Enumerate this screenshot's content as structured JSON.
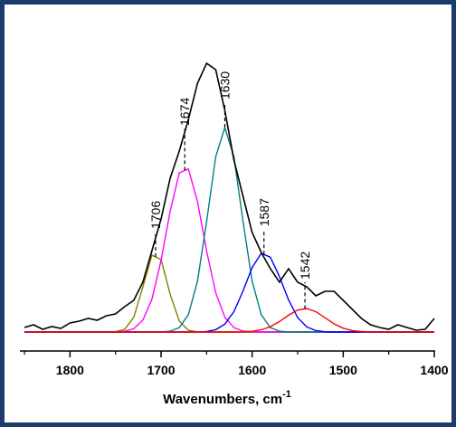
{
  "chart_data": {
    "type": "line",
    "x": [
      1850,
      1840,
      1830,
      1820,
      1810,
      1800,
      1790,
      1780,
      1770,
      1760,
      1750,
      1740,
      1730,
      1720,
      1710,
      1700,
      1690,
      1680,
      1670,
      1660,
      1650,
      1640,
      1630,
      1620,
      1610,
      1600,
      1590,
      1580,
      1570,
      1560,
      1550,
      1540,
      1530,
      1520,
      1510,
      1500,
      1490,
      1480,
      1470,
      1460,
      1450,
      1440,
      1430,
      1420,
      1410,
      1400
    ],
    "series": [
      {
        "color": "#800000",
        "x": [
          1850,
          1400
        ],
        "values": [
          0,
          0
        ]
      },
      {
        "color": "#808000",
        "values": [
          0,
          0,
          0,
          0,
          0,
          0,
          0,
          0,
          0,
          0,
          0.3,
          2.9,
          16.2,
          49.8,
          84.9,
          80.1,
          41.7,
          12.0,
          1.9,
          0.2,
          0,
          0,
          0,
          0,
          0,
          0,
          0,
          0,
          0,
          0,
          0,
          0,
          0,
          0,
          0,
          0,
          0,
          0,
          0,
          0,
          0,
          0,
          0,
          0,
          0,
          0
        ]
      },
      {
        "color": "#ff00ff",
        "values": [
          0,
          0,
          0,
          0,
          0,
          0,
          0,
          0,
          0,
          0,
          0.1,
          0.8,
          3.6,
          13.1,
          36.4,
          79.1,
          133.6,
          175.9,
          180.4,
          144.1,
          89.6,
          43.4,
          16.4,
          4.8,
          1.1,
          0.2,
          0,
          0,
          0,
          0,
          0,
          0,
          0,
          0,
          0,
          0,
          0,
          0,
          0,
          0,
          0,
          0,
          0,
          0,
          0,
          0
        ]
      },
      {
        "color": "#008080",
        "values": [
          0,
          0,
          0,
          0,
          0,
          0,
          0,
          0,
          0,
          0,
          0,
          0,
          0,
          0,
          0,
          0.1,
          0.9,
          4.8,
          19.2,
          56.3,
          122,
          193.7,
          226,
          193.7,
          122,
          56.3,
          19.2,
          4.8,
          0.9,
          0.1,
          0,
          0,
          0,
          0,
          0,
          0,
          0,
          0,
          0,
          0,
          0,
          0,
          0,
          0,
          0,
          0
        ]
      },
      {
        "color": "#0000ff",
        "values": [
          0,
          0,
          0,
          0,
          0,
          0,
          0,
          0,
          0,
          0,
          0,
          0,
          0,
          0,
          0,
          0,
          0,
          0,
          0,
          0.1,
          0.6,
          2.6,
          8.7,
          22.5,
          45.4,
          71.3,
          87.0,
          82.7,
          61.3,
          35.4,
          15.9,
          5.6,
          1.5,
          0.3,
          0,
          0,
          0,
          0,
          0,
          0,
          0,
          0,
          0,
          0,
          0,
          0
        ]
      },
      {
        "color": "#ff0000",
        "values": [
          0,
          0,
          0,
          0,
          0,
          0,
          0,
          0,
          0,
          0,
          0,
          0,
          0,
          0,
          0,
          0,
          0,
          0,
          0,
          0,
          0,
          0,
          0,
          0,
          0.2,
          0.8,
          2.4,
          5.9,
          11.6,
          18.6,
          24.3,
          26,
          22.4,
          15.8,
          9.0,
          4.2,
          1.6,
          0.5,
          0.1,
          0,
          0,
          0,
          0,
          0,
          0,
          0
        ]
      },
      {
        "color": "#000000",
        "values": [
          5,
          8,
          3,
          6,
          4,
          10,
          12,
          15,
          13,
          18,
          20,
          28,
          35,
          55,
          90,
          125,
          170,
          200,
          235,
          275,
          297,
          290,
          245,
          190,
          150,
          110,
          88,
          70,
          55,
          70,
          55,
          50,
          40,
          45,
          45,
          35,
          25,
          15,
          8,
          5,
          3,
          8,
          5,
          2,
          3,
          15
        ]
      }
    ],
    "peak_labels": [
      1706,
      1674,
      1630,
      1587,
      1542
    ],
    "xlim": [
      1855,
      1400
    ],
    "ylim": [
      -21,
      350
    ],
    "xticks": [
      1800,
      1700,
      1600,
      1500,
      1400
    ],
    "xminorticks": [
      1850,
      1750,
      1650,
      1550,
      1450
    ],
    "xlabel": "Wavenumbers, cm",
    "xlabel_superscript": "-1",
    "border_color": "#1d3c6e"
  }
}
